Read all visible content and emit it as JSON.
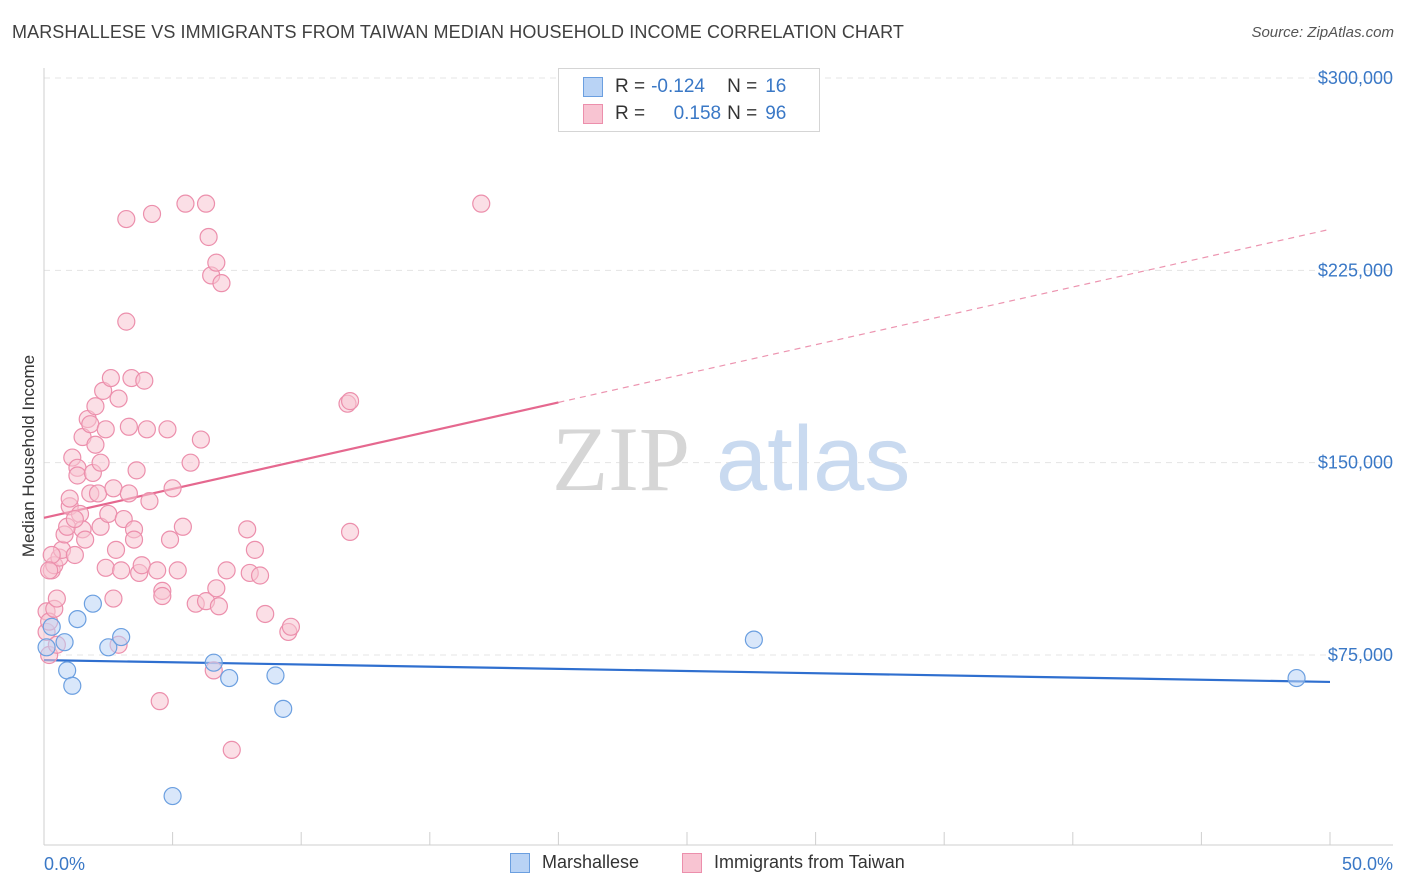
{
  "title": "MARSHALLESE VS IMMIGRANTS FROM TAIWAN MEDIAN HOUSEHOLD INCOME CORRELATION CHART",
  "source": "Source: ZipAtlas.com",
  "watermark": {
    "zip": "ZIP",
    "atlas": "atlas"
  },
  "legend": {
    "r_label": "R =",
    "n_label": "N =",
    "rows": [
      {
        "r": "-0.124",
        "n": "16"
      },
      {
        "r": "0.158",
        "n": "96"
      }
    ]
  },
  "colors": {
    "marshallese_fill": "#b9d3f5",
    "marshallese_stroke": "#6b9fe0",
    "marshallese_line": "#2f6fcf",
    "taiwan_fill": "#f8c4d2",
    "taiwan_stroke": "#ec8fac",
    "taiwan_line": "#e5688f",
    "tick_text": "#3a78c6"
  },
  "chart_data": {
    "type": "scatter",
    "title": "MARSHALLESE VS IMMIGRANTS FROM TAIWAN MEDIAN HOUSEHOLD INCOME CORRELATION CHART",
    "xlabel": "",
    "ylabel": "Median Household Income",
    "xlim": [
      0,
      50
    ],
    "ylim": [
      10000,
      315000
    ],
    "x_tick_labels": [
      "0.0%",
      "50.0%"
    ],
    "y_ticks": [
      75000,
      150000,
      225000,
      300000
    ],
    "y_tick_labels": [
      "$75,000",
      "$150,000",
      "$225,000",
      "$300,000"
    ],
    "grid": true,
    "legend_position": "top-center",
    "series": [
      {
        "name": "Marshallese",
        "r": -0.124,
        "n": 16,
        "trend": {
          "x": [
            0,
            50
          ],
          "y": [
            73000,
            64500
          ],
          "dashed_from": null
        },
        "points": [
          [
            0.1,
            78000
          ],
          [
            0.3,
            86000
          ],
          [
            0.8,
            80000
          ],
          [
            0.9,
            69000
          ],
          [
            1.1,
            63000
          ],
          [
            1.3,
            89000
          ],
          [
            1.9,
            95000
          ],
          [
            2.5,
            78000
          ],
          [
            3.0,
            82000
          ],
          [
            5.0,
            20000
          ],
          [
            6.6,
            72000
          ],
          [
            7.2,
            66000
          ],
          [
            9.0,
            67000
          ],
          [
            9.3,
            54000
          ],
          [
            27.6,
            81000
          ],
          [
            48.7,
            66000
          ]
        ]
      },
      {
        "name": "Immigrants from Taiwan",
        "r": 0.158,
        "n": 96,
        "trend": {
          "x": [
            0,
            50
          ],
          "y": [
            128500,
            241000
          ],
          "dashed_from": 20
        },
        "points": [
          [
            0.1,
            84000
          ],
          [
            0.1,
            92000
          ],
          [
            0.2,
            75000
          ],
          [
            0.2,
            88000
          ],
          [
            0.3,
            108000
          ],
          [
            0.4,
            93000
          ],
          [
            0.4,
            110000
          ],
          [
            0.5,
            79000
          ],
          [
            0.6,
            113000
          ],
          [
            0.7,
            116000
          ],
          [
            0.8,
            122000
          ],
          [
            0.9,
            125000
          ],
          [
            1.0,
            133000
          ],
          [
            1.0,
            136000
          ],
          [
            1.1,
            152000
          ],
          [
            1.2,
            114000
          ],
          [
            1.3,
            148000
          ],
          [
            1.3,
            145000
          ],
          [
            1.4,
            130000
          ],
          [
            1.5,
            124000
          ],
          [
            1.5,
            160000
          ],
          [
            1.6,
            120000
          ],
          [
            1.7,
            167000
          ],
          [
            1.8,
            165000
          ],
          [
            1.8,
            138000
          ],
          [
            1.9,
            146000
          ],
          [
            2.0,
            172000
          ],
          [
            2.0,
            157000
          ],
          [
            2.1,
            138000
          ],
          [
            2.2,
            125000
          ],
          [
            2.2,
            150000
          ],
          [
            2.3,
            178000
          ],
          [
            2.4,
            163000
          ],
          [
            2.4,
            109000
          ],
          [
            2.5,
            130000
          ],
          [
            2.6,
            183000
          ],
          [
            2.7,
            140000
          ],
          [
            2.8,
            116000
          ],
          [
            2.9,
            175000
          ],
          [
            2.9,
            79000
          ],
          [
            3.0,
            108000
          ],
          [
            3.1,
            128000
          ],
          [
            3.2,
            205000
          ],
          [
            3.2,
            245000
          ],
          [
            3.3,
            138000
          ],
          [
            3.3,
            164000
          ],
          [
            3.4,
            183000
          ],
          [
            3.5,
            124000
          ],
          [
            3.6,
            147000
          ],
          [
            3.7,
            107000
          ],
          [
            3.8,
            110000
          ],
          [
            3.9,
            182000
          ],
          [
            4.0,
            163000
          ],
          [
            4.1,
            135000
          ],
          [
            4.2,
            247000
          ],
          [
            4.4,
            108000
          ],
          [
            4.5,
            57000
          ],
          [
            4.6,
            100000
          ],
          [
            4.6,
            98000
          ],
          [
            4.8,
            163000
          ],
          [
            4.9,
            120000
          ],
          [
            5.0,
            140000
          ],
          [
            5.2,
            108000
          ],
          [
            5.4,
            125000
          ],
          [
            5.5,
            251000
          ],
          [
            5.7,
            150000
          ],
          [
            5.9,
            95000
          ],
          [
            6.1,
            159000
          ],
          [
            6.3,
            96000
          ],
          [
            6.3,
            251000
          ],
          [
            6.4,
            238000
          ],
          [
            6.5,
            223000
          ],
          [
            6.6,
            69000
          ],
          [
            6.7,
            228000
          ],
          [
            6.7,
            101000
          ],
          [
            6.8,
            94000
          ],
          [
            6.9,
            220000
          ],
          [
            7.1,
            108000
          ],
          [
            7.3,
            38000
          ],
          [
            7.9,
            124000
          ],
          [
            8.0,
            107000
          ],
          [
            8.2,
            116000
          ],
          [
            8.4,
            106000
          ],
          [
            8.6,
            91000
          ],
          [
            9.5,
            84000
          ],
          [
            9.6,
            86000
          ],
          [
            11.8,
            173000
          ],
          [
            11.9,
            174000
          ],
          [
            11.9,
            123000
          ],
          [
            17.0,
            251000
          ],
          [
            0.3,
            114000
          ],
          [
            0.5,
            97000
          ],
          [
            1.2,
            128000
          ],
          [
            2.7,
            97000
          ],
          [
            3.5,
            120000
          ],
          [
            0.2,
            108000
          ]
        ]
      }
    ]
  },
  "bottom_legend": [
    "Marshallese",
    "Immigrants from Taiwan"
  ]
}
